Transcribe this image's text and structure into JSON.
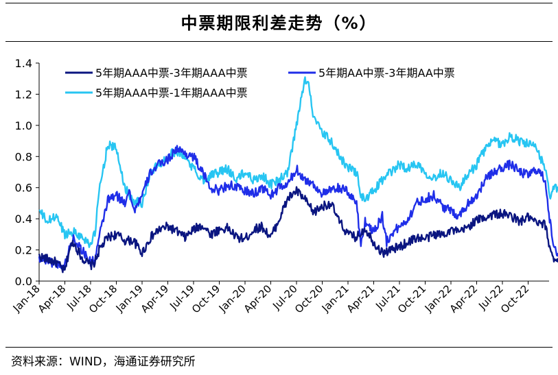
{
  "title": "中票期限利差走势（%）",
  "source": "资料来源：WIND，海通证券研究所",
  "chart_data": {
    "type": "line",
    "title": "中票期限利差走势（%）",
    "xlabel": "",
    "ylabel": "",
    "ylim": [
      0.0,
      1.4
    ],
    "yticks": [
      0.0,
      0.2,
      0.4,
      0.6,
      0.8,
      1.0,
      1.2,
      1.4
    ],
    "ytick_labels": [
      "0.0",
      "0.2",
      "0.4",
      "0.6",
      "0.8",
      "1.0",
      "1.2",
      "1.4"
    ],
    "xlim": [
      0,
      60.5
    ],
    "xtick_labels": [
      "Jan-18",
      "Apr-18",
      "Jul-18",
      "Oct-18",
      "Jan-19",
      "Apr-19",
      "Jul-19",
      "Oct-19",
      "Jan-20",
      "Apr-20",
      "Jul-20",
      "Oct-20",
      "Jan-21",
      "Apr-21",
      "Jul-21",
      "Oct-21",
      "Jan-22",
      "Apr-22",
      "Jul-22",
      "Oct-22"
    ],
    "x_unit": "months since Jan-18",
    "legend": "top-left",
    "series": [
      {
        "name": "5年期AAA中票-3年期AAA中票",
        "color": "#0a1580",
        "points": [
          [
            0,
            0.16
          ],
          [
            1,
            0.14
          ],
          [
            2,
            0.12
          ],
          [
            3,
            0.06
          ],
          [
            3.5,
            0.2
          ],
          [
            4,
            0.25
          ],
          [
            5,
            0.15
          ],
          [
            6,
            0.1
          ],
          [
            6.5,
            0.12
          ],
          [
            7,
            0.2
          ],
          [
            8,
            0.28
          ],
          [
            9,
            0.3
          ],
          [
            10,
            0.26
          ],
          [
            11,
            0.26
          ],
          [
            12,
            0.18
          ],
          [
            13,
            0.28
          ],
          [
            14,
            0.33
          ],
          [
            15,
            0.35
          ],
          [
            16,
            0.32
          ],
          [
            17,
            0.28
          ],
          [
            18,
            0.33
          ],
          [
            19,
            0.36
          ],
          [
            20,
            0.3
          ],
          [
            21,
            0.33
          ],
          [
            22,
            0.34
          ],
          [
            23,
            0.28
          ],
          [
            24,
            0.27
          ],
          [
            25,
            0.33
          ],
          [
            26,
            0.35
          ],
          [
            27,
            0.28
          ],
          [
            28,
            0.4
          ],
          [
            29,
            0.53
          ],
          [
            30,
            0.58
          ],
          [
            31,
            0.52
          ],
          [
            32,
            0.44
          ],
          [
            33,
            0.48
          ],
          [
            34,
            0.5
          ],
          [
            35,
            0.38
          ],
          [
            36,
            0.3
          ],
          [
            37,
            0.28
          ],
          [
            38,
            0.34
          ],
          [
            39,
            0.25
          ],
          [
            40,
            0.18
          ],
          [
            41,
            0.2
          ],
          [
            42,
            0.22
          ],
          [
            43,
            0.25
          ],
          [
            44,
            0.28
          ],
          [
            45,
            0.27
          ],
          [
            46,
            0.3
          ],
          [
            47,
            0.3
          ],
          [
            48,
            0.33
          ],
          [
            49,
            0.31
          ],
          [
            50,
            0.35
          ],
          [
            51,
            0.39
          ],
          [
            52,
            0.41
          ],
          [
            53,
            0.43
          ],
          [
            54,
            0.43
          ],
          [
            55,
            0.42
          ],
          [
            56,
            0.38
          ],
          [
            57,
            0.41
          ],
          [
            58,
            0.37
          ],
          [
            59,
            0.36
          ],
          [
            59.5,
            0.22
          ],
          [
            60,
            0.15
          ],
          [
            60.5,
            0.12
          ]
        ]
      },
      {
        "name": "5年期AA中票-3年期AA中票",
        "color": "#1f2ee8",
        "points": [
          [
            0,
            0.15
          ],
          [
            1,
            0.13
          ],
          [
            2,
            0.11
          ],
          [
            3,
            0.1
          ],
          [
            3.5,
            0.2
          ],
          [
            4,
            0.28
          ],
          [
            5,
            0.2
          ],
          [
            6,
            0.12
          ],
          [
            6.5,
            0.14
          ],
          [
            7,
            0.28
          ],
          [
            8,
            0.52
          ],
          [
            9,
            0.55
          ],
          [
            10,
            0.5
          ],
          [
            10.5,
            0.6
          ],
          [
            11,
            0.45
          ],
          [
            12,
            0.55
          ],
          [
            13,
            0.7
          ],
          [
            14,
            0.75
          ],
          [
            15,
            0.78
          ],
          [
            16,
            0.85
          ],
          [
            17,
            0.82
          ],
          [
            18,
            0.8
          ],
          [
            19,
            0.7
          ],
          [
            20,
            0.6
          ],
          [
            21,
            0.58
          ],
          [
            22,
            0.62
          ],
          [
            23,
            0.6
          ],
          [
            24,
            0.58
          ],
          [
            25,
            0.56
          ],
          [
            26,
            0.6
          ],
          [
            27,
            0.55
          ],
          [
            28,
            0.6
          ],
          [
            29,
            0.62
          ],
          [
            30,
            0.72
          ],
          [
            31,
            0.65
          ],
          [
            32,
            0.62
          ],
          [
            33,
            0.56
          ],
          [
            34,
            0.58
          ],
          [
            35,
            0.6
          ],
          [
            36,
            0.57
          ],
          [
            37,
            0.5
          ],
          [
            37.5,
            0.24
          ],
          [
            38,
            0.38
          ],
          [
            39,
            0.32
          ],
          [
            40,
            0.42
          ],
          [
            40.5,
            0.25
          ],
          [
            41,
            0.3
          ],
          [
            42,
            0.35
          ],
          [
            43,
            0.4
          ],
          [
            44,
            0.5
          ],
          [
            45,
            0.53
          ],
          [
            46,
            0.55
          ],
          [
            47,
            0.48
          ],
          [
            48,
            0.45
          ],
          [
            49,
            0.42
          ],
          [
            50,
            0.5
          ],
          [
            51,
            0.55
          ],
          [
            52,
            0.65
          ],
          [
            53,
            0.7
          ],
          [
            54,
            0.73
          ],
          [
            55,
            0.75
          ],
          [
            56,
            0.7
          ],
          [
            57,
            0.68
          ],
          [
            58,
            0.72
          ],
          [
            59,
            0.65
          ],
          [
            59.5,
            0.4
          ],
          [
            60,
            0.2
          ],
          [
            60.5,
            0.18
          ]
        ]
      },
      {
        "name": "5年期AAA中票-1年期AAA中票",
        "color": "#27c5f2",
        "points": [
          [
            0,
            0.45
          ],
          [
            1,
            0.38
          ],
          [
            2,
            0.42
          ],
          [
            3,
            0.3
          ],
          [
            4,
            0.32
          ],
          [
            5,
            0.28
          ],
          [
            6,
            0.24
          ],
          [
            6.5,
            0.3
          ],
          [
            7,
            0.58
          ],
          [
            8,
            0.88
          ],
          [
            9,
            0.85
          ],
          [
            10,
            0.6
          ],
          [
            11,
            0.52
          ],
          [
            12,
            0.5
          ],
          [
            13,
            0.7
          ],
          [
            14,
            0.75
          ],
          [
            15,
            0.8
          ],
          [
            16,
            0.84
          ],
          [
            17,
            0.8
          ],
          [
            18,
            0.72
          ],
          [
            19,
            0.65
          ],
          [
            20,
            0.68
          ],
          [
            21,
            0.7
          ],
          [
            22,
            0.72
          ],
          [
            23,
            0.65
          ],
          [
            24,
            0.7
          ],
          [
            25,
            0.65
          ],
          [
            26,
            0.68
          ],
          [
            27,
            0.62
          ],
          [
            28,
            0.65
          ],
          [
            29,
            0.7
          ],
          [
            30,
            1.0
          ],
          [
            31,
            1.3
          ],
          [
            31.5,
            1.25
          ],
          [
            32,
            1.05
          ],
          [
            33,
            0.95
          ],
          [
            34,
            0.9
          ],
          [
            35,
            0.8
          ],
          [
            36,
            0.73
          ],
          [
            37,
            0.7
          ],
          [
            37.5,
            0.55
          ],
          [
            38,
            0.52
          ],
          [
            39,
            0.58
          ],
          [
            40,
            0.65
          ],
          [
            41,
            0.7
          ],
          [
            42,
            0.75
          ],
          [
            43,
            0.72
          ],
          [
            44,
            0.76
          ],
          [
            45,
            0.7
          ],
          [
            46,
            0.66
          ],
          [
            47,
            0.7
          ],
          [
            48,
            0.65
          ],
          [
            49,
            0.6
          ],
          [
            50,
            0.68
          ],
          [
            51,
            0.75
          ],
          [
            52,
            0.85
          ],
          [
            53,
            0.9
          ],
          [
            54,
            0.88
          ],
          [
            55,
            0.93
          ],
          [
            56,
            0.9
          ],
          [
            57,
            0.88
          ],
          [
            58,
            0.85
          ],
          [
            59,
            0.72
          ],
          [
            59.5,
            0.55
          ],
          [
            60,
            0.6
          ],
          [
            60.5,
            0.58
          ]
        ]
      }
    ]
  }
}
